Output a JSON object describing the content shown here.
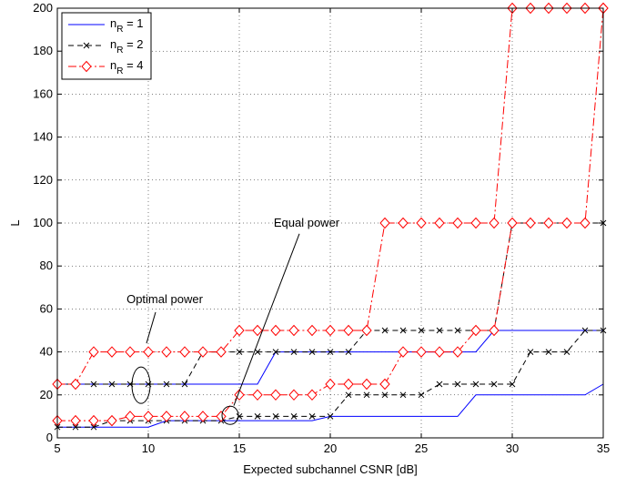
{
  "chart_data": {
    "type": "line",
    "xlabel": "Expected subchannel CSNR [dB]",
    "ylabel": "L",
    "xlim": [
      5,
      35
    ],
    "ylim": [
      0,
      200
    ],
    "xticks": [
      5,
      10,
      15,
      20,
      25,
      30,
      35
    ],
    "yticks": [
      0,
      20,
      40,
      60,
      80,
      100,
      120,
      140,
      160,
      180,
      200
    ],
    "grid": true,
    "legend_position": "top-left",
    "x": [
      5,
      6,
      7,
      8,
      9,
      10,
      11,
      12,
      13,
      14,
      15,
      16,
      17,
      18,
      19,
      20,
      21,
      22,
      23,
      24,
      25,
      26,
      27,
      28,
      29,
      30,
      31,
      32,
      33,
      34,
      35
    ],
    "series": [
      {
        "name": "n_R = 1",
        "legend_main": "n",
        "legend_sub": "R",
        "legend_rest": " = 1",
        "color": "#0000ff",
        "dash": "solid",
        "marker": "none",
        "curves": [
          {
            "label": "Optimal power",
            "values": [
              25,
              25,
              25,
              25,
              25,
              25,
              25,
              25,
              25,
              25,
              25,
              25,
              40,
              40,
              40,
              40,
              40,
              40,
              40,
              40,
              40,
              40,
              40,
              40,
              50,
              50,
              50,
              50,
              50,
              50,
              50
            ]
          },
          {
            "label": "Equal power",
            "values": [
              5,
              5,
              5,
              5,
              5,
              5,
              8,
              8,
              8,
              8,
              8,
              8,
              8,
              8,
              8,
              10,
              10,
              10,
              10,
              10,
              10,
              10,
              10,
              20,
              20,
              20,
              20,
              20,
              20,
              20,
              25
            ]
          }
        ]
      },
      {
        "name": "n_R = 2",
        "legend_main": "n",
        "legend_sub": "R",
        "legend_rest": " = 2",
        "color": "#000000",
        "dash": "dashed",
        "marker": "x",
        "curves": [
          {
            "label": "Optimal power",
            "values": [
              25,
              25,
              25,
              25,
              25,
              25,
              25,
              25,
              40,
              40,
              40,
              40,
              40,
              40,
              40,
              40,
              40,
              50,
              50,
              50,
              50,
              50,
              50,
              50,
              50,
              100,
              100,
              100,
              100,
              100,
              100
            ]
          },
          {
            "label": "Equal power",
            "values": [
              5,
              5,
              5,
              8,
              8,
              8,
              8,
              8,
              8,
              8,
              10,
              10,
              10,
              10,
              10,
              10,
              20,
              20,
              20,
              20,
              20,
              25,
              25,
              25,
              25,
              25,
              40,
              40,
              40,
              50,
              50
            ]
          }
        ]
      },
      {
        "name": "n_R = 4",
        "legend_main": "n",
        "legend_sub": "R",
        "legend_rest": " = 4",
        "color": "#ff0000",
        "dash": "dashdot",
        "marker": "diamond",
        "curves": [
          {
            "label": "Optimal power",
            "values": [
              25,
              25,
              40,
              40,
              40,
              40,
              40,
              40,
              40,
              40,
              50,
              50,
              50,
              50,
              50,
              50,
              50,
              50,
              100,
              100,
              100,
              100,
              100,
              100,
              100,
              200,
              200,
              200,
              200,
              200,
              200
            ]
          },
          {
            "label": "Equal power",
            "values": [
              8,
              8,
              8,
              8,
              10,
              10,
              10,
              10,
              10,
              10,
              20,
              20,
              20,
              20,
              20,
              25,
              25,
              25,
              25,
              40,
              40,
              40,
              40,
              50,
              50,
              100,
              100,
              100,
              100,
              100,
              200
            ]
          }
        ]
      }
    ],
    "annotations": [
      {
        "text": "Optimal power",
        "x": 10.9,
        "y": 64.5,
        "target": [
          9.6,
          25
        ]
      },
      {
        "text": "Equal power",
        "x": 18.7,
        "y": 100,
        "target": [
          14.5,
          10
        ]
      }
    ]
  }
}
